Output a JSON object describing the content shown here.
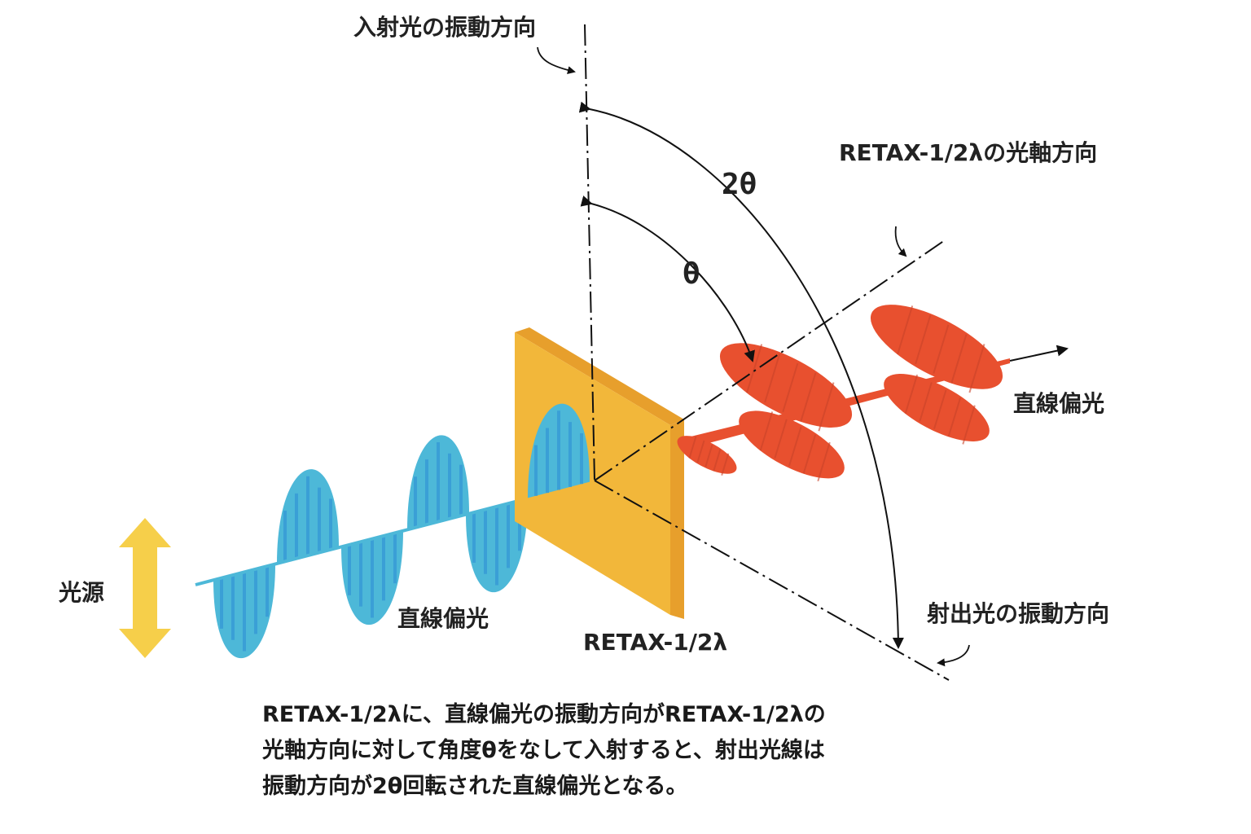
{
  "labels": {
    "incident_vibration": "入射光の振動方向",
    "optical_axis": "RETAX-1/2λの光軸方向",
    "two_theta": "2θ",
    "theta": "θ",
    "output_linear": "直線偏光",
    "input_linear": "直線偏光",
    "light_source": "光源",
    "plate": "RETAX-1/2λ",
    "exit_vibration": "射出光の振動方向"
  },
  "caption": [
    "RETAX-1/2λに、直線偏光の振動方向がRETAX-1/2λの",
    "光軸方向に対して角度θをなして入射すると、射出光線は",
    "振動方向が2θ回転された直線偏光となる。"
  ],
  "colors": {
    "input_wave": "#4db8d8",
    "input_stripe": "#3a9fd6",
    "output_wave": "#e8502f",
    "plate_face": "#f2b73a",
    "plate_edge": "#e79f2c",
    "source_arrow": "#f6cf4a",
    "line": "#111111"
  }
}
